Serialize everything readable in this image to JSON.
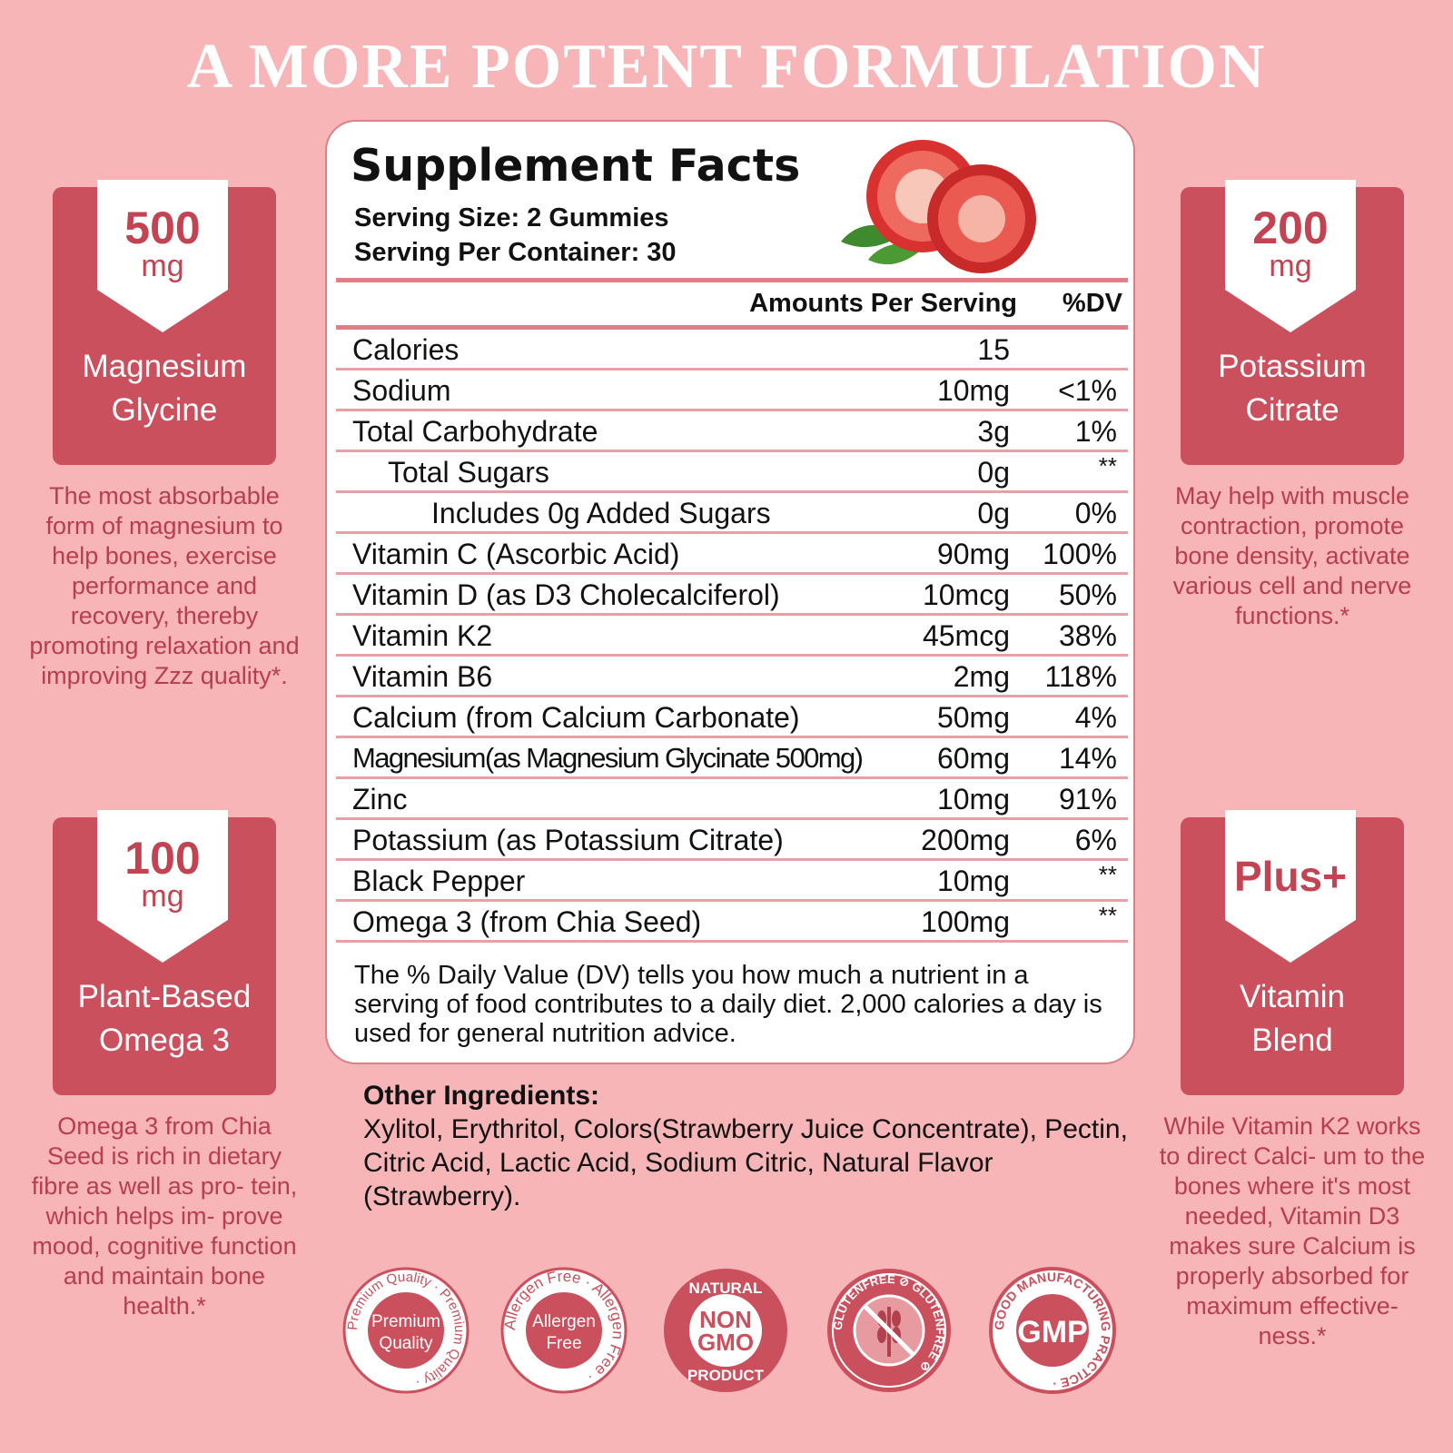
{
  "headline": "A MORE POTENT FORMULATION",
  "cards": {
    "magnesium": {
      "amount": "500",
      "unit": "mg",
      "name1": "Magnesium",
      "name2": "Glycine",
      "desc": "The most absorbable form of magnesium to help bones, exercise performance and recovery, thereby promoting relaxation and improving Zzz quality*."
    },
    "potassium": {
      "amount": "200",
      "unit": "mg",
      "name1": "Potassium",
      "name2": "Citrate",
      "desc": "May help with muscle contraction, promote bone density, activate various cell and nerve functions.*"
    },
    "omega": {
      "amount": "100",
      "unit": "mg",
      "name1": "Plant-Based",
      "name2": "Omega 3",
      "desc": "Omega 3 from Chia Seed is rich in dietary fibre as well as pro- tein, which helps im- prove mood, cognitive function and maintain bone health.*"
    },
    "vitamin": {
      "plus": "Plus+",
      "name1": "Vitamin",
      "name2": "Blend",
      "desc": "While Vitamin K2 works to direct Calci- um to the bones where it's most needed, Vitamin D3 makes sure Calcium is properly absorbed for maximum effective- ness.*"
    }
  },
  "facts": {
    "title": "Supplement Facts",
    "serving_size": "Serving Size: 2 Gummies",
    "servings_per_container": "Serving Per Container: 30",
    "amount_header": "Amounts Per Serving",
    "dv_header": "%DV",
    "rows": [
      {
        "label": "Calories",
        "amount": "15",
        "dv": ""
      },
      {
        "label": "Sodium",
        "amount": "10mg",
        "dv": "<1%"
      },
      {
        "label": "Total Carbohydrate",
        "amount": "3g",
        "dv": "1%"
      },
      {
        "label": "Total Sugars",
        "amount": "0g",
        "dv": "**"
      },
      {
        "label": "Includes 0g Added Sugars",
        "amount": "0g",
        "dv": "0%"
      },
      {
        "label": "Vitamin C  (Ascorbic Acid)",
        "amount": "90mg",
        "dv": "100%"
      },
      {
        "label": "Vitamin D (as D3 Cholecalciferol)",
        "amount": "10mcg",
        "dv": "50%"
      },
      {
        "label": "Vitamin K2",
        "amount": "45mcg",
        "dv": "38%"
      },
      {
        "label": "Vitamin B6",
        "amount": "2mg",
        "dv": "118%"
      },
      {
        "label": "Calcium (from Calcium Carbonate)",
        "amount": "50mg",
        "dv": "4%"
      },
      {
        "label": "Magnesium(as Magnesium Glycinate 500mg)",
        "amount": "60mg",
        "dv": "14%"
      },
      {
        "label": "Zinc",
        "amount": "10mg",
        "dv": "91%"
      },
      {
        "label": "Potassium (as Potassium Citrate)",
        "amount": "200mg",
        "dv": "6%"
      },
      {
        "label": "Black Pepper",
        "amount": "10mg",
        "dv": "**"
      },
      {
        "label": "Omega 3 (from Chia Seed)",
        "amount": "100mg",
        "dv": "**"
      }
    ],
    "note": "The % Daily Value (DV) tells you how much a nutrient in a serving of food contributes to a daily diet. 2,000 calories a day is used for general nutrition advice."
  },
  "other_ingredients": {
    "title": "Other Ingredients:",
    "text": "Xylitol, Erythritol, Colors(Strawberry Juice Concentrate), Pectin, Citric Acid, Lactic Acid, Sodium Citric, Natural Flavor (Strawberry)."
  },
  "badges": {
    "premium": {
      "ring": "Premium Quality · Premium Quality ·",
      "l1": "Premium",
      "l2": "Quality"
    },
    "allergen": {
      "ring": "Allergen Free · Allergen Free ·",
      "l1": "Allergen",
      "l2": "Free"
    },
    "nongmo": {
      "top": "NATURAL",
      "l1": "NON",
      "l2": "GMO",
      "bottom": "PRODUCT"
    },
    "gluten": {
      "ring": "GLUTENFREE ⊘ GLUTENFREE ⊘"
    },
    "gmp": {
      "ring": "GOOD MANUFACTURING PRACTICE ·",
      "center": "GMP"
    }
  },
  "colors": {
    "background": "#f7b5b8",
    "card": "#c9505c",
    "accent_text": "#b83e4c",
    "rule": "#e07f88"
  }
}
